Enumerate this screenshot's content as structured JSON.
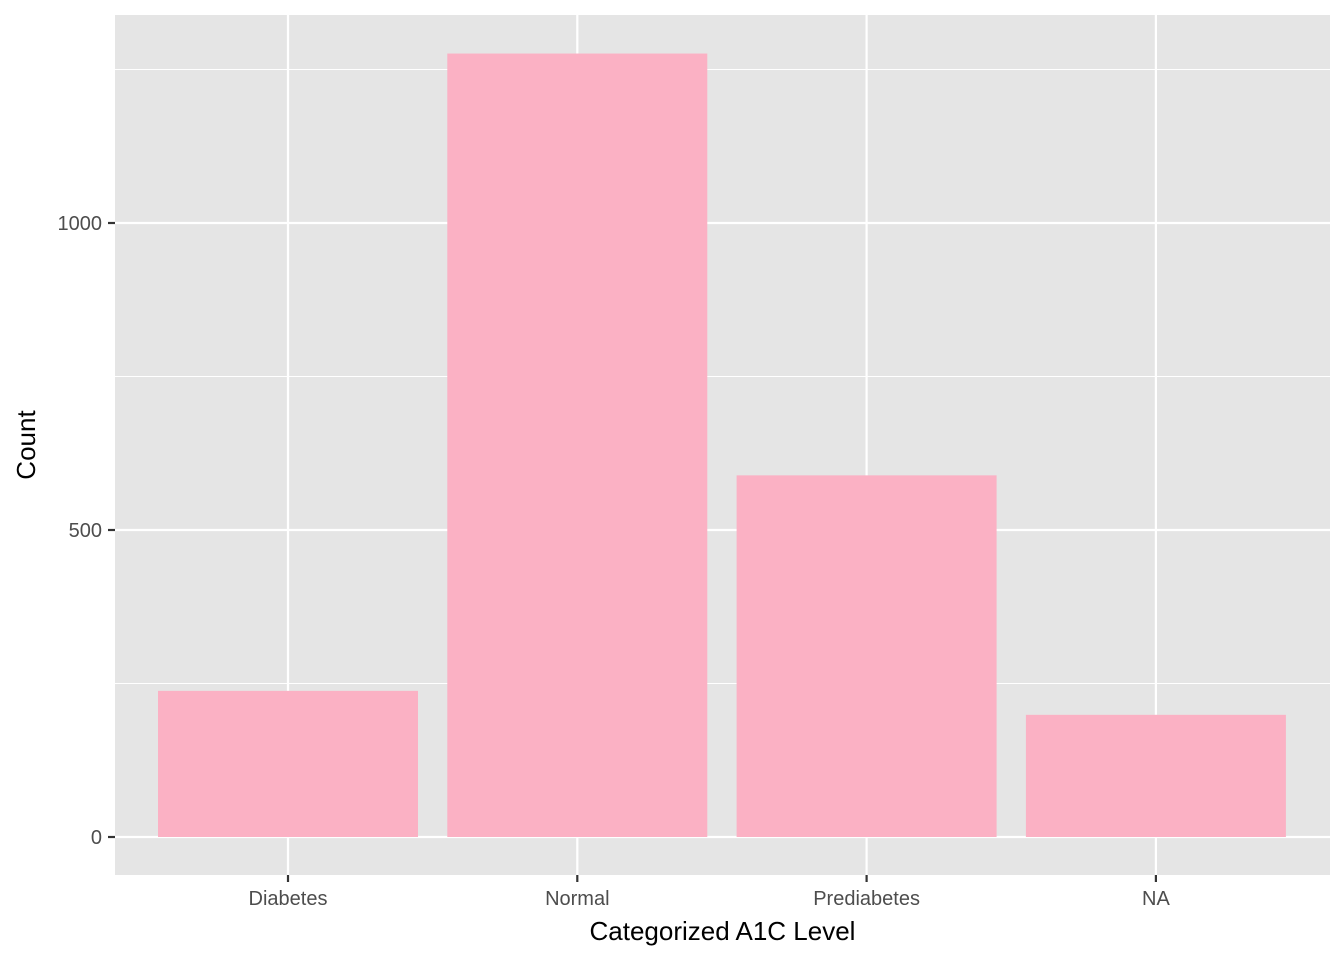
{
  "chart_data": {
    "type": "bar",
    "categories": [
      "Diabetes",
      "Normal",
      "Prediabetes",
      "NA"
    ],
    "values": [
      238,
      1276,
      589,
      199
    ],
    "xlabel": "Categorized A1C Level",
    "ylabel": "Count",
    "ylim": [
      -62,
      1338
    ],
    "yticks": [
      0,
      500,
      1000
    ],
    "ytick_labels": [
      "0",
      "500",
      "1000"
    ],
    "grid": true,
    "colors": {
      "bar": "#FBB1C4",
      "panel": "#E5E5E5",
      "grid": "#FFFFFF",
      "text": "#4D4D4D",
      "title": "#000000",
      "tick": "#333333"
    }
  }
}
